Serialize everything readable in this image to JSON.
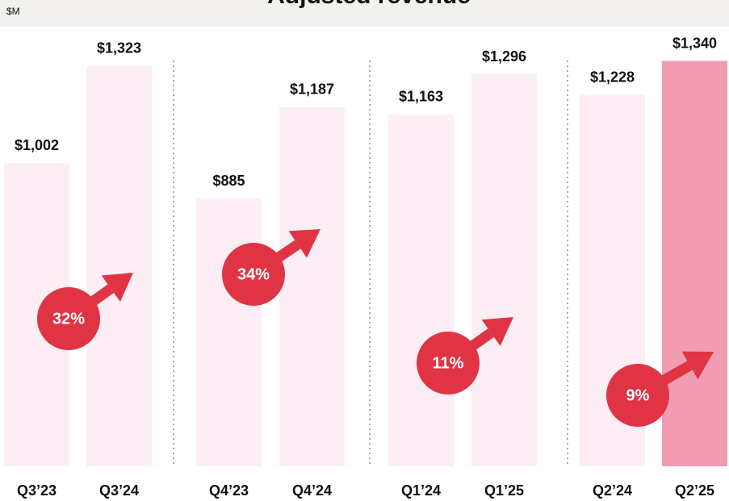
{
  "chart_data": {
    "type": "bar",
    "title": "Adjusted revenue",
    "unit_label": "$M",
    "categories": [
      "Q3’23",
      "Q3’24",
      "Q4’23",
      "Q4’24",
      "Q1’24",
      "Q1’25",
      "Q2’24",
      "Q2’25"
    ],
    "values": [
      1002,
      1323,
      885,
      1187,
      1163,
      1296,
      1228,
      1340
    ],
    "value_labels": [
      "$1,002",
      "$1,323",
      "$885",
      "$1,187",
      "$1,163",
      "$1,296",
      "$1,228",
      "$1,340"
    ],
    "colors": [
      "#fdeef5",
      "#fdeef5",
      "#fdeef5",
      "#fdeef5",
      "#fdeef5",
      "#fdeef5",
      "#fdeef5",
      "#f19cb3"
    ],
    "annotations": [
      "32%",
      "34%",
      "11%",
      "9%"
    ],
    "annotation_color": "#e03444",
    "ylim": [
      0,
      1400
    ]
  }
}
